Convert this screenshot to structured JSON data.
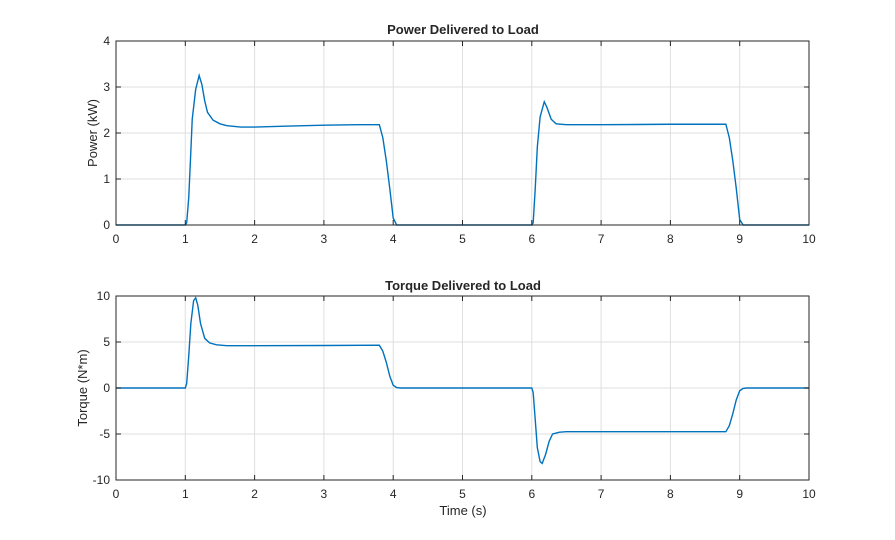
{
  "chart_data": [
    {
      "type": "line",
      "title": "Power Delivered to Load",
      "xlabel": "",
      "ylabel": "Power (kW)",
      "xlim": [
        0,
        10
      ],
      "ylim": [
        0,
        4
      ],
      "xticks": [
        "0",
        "1",
        "2",
        "3",
        "4",
        "5",
        "6",
        "7",
        "8",
        "9",
        "10"
      ],
      "yticks": [
        "0",
        "1",
        "2",
        "3",
        "4"
      ],
      "grid": true,
      "series": [
        {
          "color": "#0072BD",
          "x": [
            0,
            1.0,
            1.02,
            1.05,
            1.08,
            1.1,
            1.15,
            1.2,
            1.24,
            1.28,
            1.32,
            1.4,
            1.5,
            1.6,
            1.8,
            2.0,
            2.5,
            3.0,
            3.5,
            3.8,
            3.85,
            3.9,
            3.95,
            4.0,
            4.05,
            4.1,
            5.0,
            6.0,
            6.02,
            6.05,
            6.08,
            6.12,
            6.18,
            6.22,
            6.28,
            6.35,
            6.5,
            7.0,
            8.0,
            8.8,
            8.85,
            8.9,
            8.95,
            9.0,
            9.05,
            10.0
          ],
          "y": [
            0,
            0,
            0.05,
            0.6,
            1.6,
            2.3,
            2.95,
            3.25,
            3.05,
            2.7,
            2.45,
            2.28,
            2.2,
            2.16,
            2.13,
            2.13,
            2.15,
            2.17,
            2.18,
            2.18,
            1.9,
            1.4,
            0.8,
            0.15,
            0,
            0,
            0,
            0,
            0.05,
            0.8,
            1.7,
            2.35,
            2.68,
            2.55,
            2.3,
            2.2,
            2.18,
            2.18,
            2.19,
            2.19,
            1.9,
            1.4,
            0.8,
            0.12,
            0,
            0
          ]
        }
      ]
    },
    {
      "type": "line",
      "title": "Torque Delivered to Load",
      "xlabel": "Time (s)",
      "ylabel": "Torque (N*m)",
      "xlim": [
        0,
        10
      ],
      "ylim": [
        -10,
        10
      ],
      "xticks": [
        "0",
        "1",
        "2",
        "3",
        "4",
        "5",
        "6",
        "7",
        "8",
        "9",
        "10"
      ],
      "yticks": [
        "-10",
        "-5",
        "0",
        "5",
        "10"
      ],
      "grid": true,
      "series": [
        {
          "color": "#0072BD",
          "x": [
            0,
            1.0,
            1.02,
            1.05,
            1.08,
            1.12,
            1.15,
            1.18,
            1.22,
            1.28,
            1.35,
            1.45,
            1.6,
            2.0,
            3.0,
            3.8,
            3.85,
            3.9,
            3.95,
            4.0,
            4.05,
            4.1,
            4.2,
            5.0,
            6.0,
            6.02,
            6.05,
            6.08,
            6.12,
            6.15,
            6.2,
            6.25,
            6.3,
            6.4,
            6.5,
            7.0,
            8.0,
            8.8,
            8.85,
            8.9,
            8.95,
            9.0,
            9.05,
            9.1,
            9.2,
            10.0
          ],
          "y": [
            0,
            0,
            0.5,
            3.5,
            7.0,
            9.5,
            9.8,
            9.0,
            7.0,
            5.4,
            4.9,
            4.7,
            4.6,
            4.6,
            4.62,
            4.65,
            4.0,
            2.8,
            1.3,
            0.3,
            0.05,
            0,
            0,
            0,
            0,
            -0.5,
            -3.5,
            -6.5,
            -8.0,
            -8.2,
            -7.2,
            -5.8,
            -5.0,
            -4.8,
            -4.75,
            -4.75,
            -4.75,
            -4.75,
            -4.1,
            -2.8,
            -1.3,
            -0.3,
            -0.05,
            0,
            0,
            0
          ]
        }
      ]
    }
  ]
}
